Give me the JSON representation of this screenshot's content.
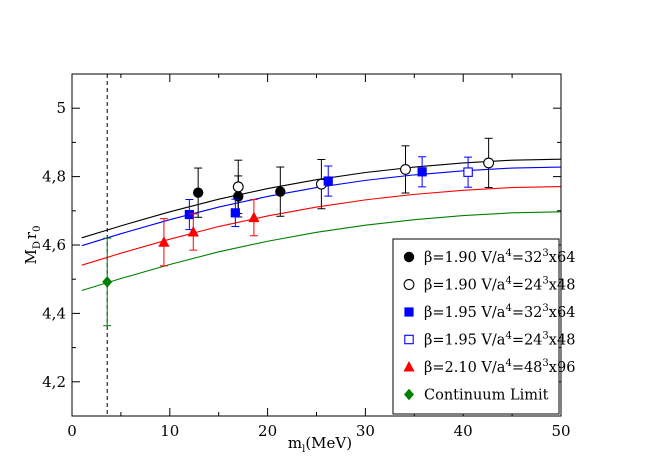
{
  "chart_data": {
    "type": "scatter",
    "title": "",
    "xlabel": {
      "base": "m",
      "sub": "l",
      "rest": "(MeV)"
    },
    "ylabel": {
      "base": "M",
      "sub1": "D",
      "mid": "r",
      "sub2": "0"
    },
    "xlim": [
      0,
      50
    ],
    "ylim": [
      4.1,
      5.1
    ],
    "xticks": [
      0,
      10,
      20,
      30,
      40,
      50
    ],
    "xtick_labels": [
      "0",
      "10",
      "20",
      "30",
      "40",
      "50"
    ],
    "yticks": [
      4.2,
      4.4,
      4.6,
      4.8,
      5.0
    ],
    "ytick_labels": [
      "4,2",
      "4,4",
      "4,6",
      "4,8",
      "5"
    ],
    "grid": false,
    "legend_position": "bottom-right",
    "vline_x": 3.6,
    "series": [
      {
        "name": "β=1.90 V/a⁴=32³x64",
        "label_parts": [
          "β=1.90 V/a",
          "4",
          "=32",
          "3",
          "x64"
        ],
        "marker": "circle-filled",
        "color": "#000000",
        "points": [
          {
            "x": 12.9,
            "y": 4.753,
            "err": 0.072
          },
          {
            "x": 17.0,
            "y": 4.742,
            "err": 0.06
          },
          {
            "x": 21.3,
            "y": 4.756,
            "err": 0.072
          }
        ]
      },
      {
        "name": "β=1.90 V/a⁴=24³x48",
        "label_parts": [
          "β=1.90 V/a",
          "4",
          "=24",
          "3",
          "x48"
        ],
        "marker": "circle-open",
        "color": "#000000",
        "points": [
          {
            "x": 17.0,
            "y": 4.77,
            "err": 0.078
          },
          {
            "x": 25.5,
            "y": 4.778,
            "err": 0.072
          },
          {
            "x": 34.1,
            "y": 4.821,
            "err": 0.069
          },
          {
            "x": 42.6,
            "y": 4.84,
            "err": 0.072
          }
        ]
      },
      {
        "name": "β=1.95 V/a⁴=32³x64",
        "label_parts": [
          "β=1.95 V/a",
          "4",
          "=32",
          "3",
          "x64"
        ],
        "marker": "square-filled",
        "color": "#0000ff",
        "points": [
          {
            "x": 12.0,
            "y": 4.689,
            "err": 0.044
          },
          {
            "x": 16.7,
            "y": 4.694,
            "err": 0.04
          },
          {
            "x": 26.2,
            "y": 4.787,
            "err": 0.044
          },
          {
            "x": 35.8,
            "y": 4.814,
            "err": 0.044
          }
        ]
      },
      {
        "name": "β=1.95 V/a⁴=24³x48",
        "label_parts": [
          "β=1.95 V/a",
          "4",
          "=24",
          "3",
          "x48"
        ],
        "marker": "square-open",
        "color": "#0000ff",
        "points": [
          {
            "x": 40.5,
            "y": 4.813,
            "err": 0.044
          }
        ]
      },
      {
        "name": "β=2.10 V/a⁴=48³x96",
        "label_parts": [
          "β=2.10 V/a",
          "4",
          "=48",
          "3",
          "x96"
        ],
        "marker": "triangle-filled",
        "color": "#ff0000",
        "points": [
          {
            "x": 9.4,
            "y": 4.608,
            "err": 0.069
          },
          {
            "x": 12.4,
            "y": 4.638,
            "err": 0.053
          },
          {
            "x": 18.6,
            "y": 4.68,
            "err": 0.053
          }
        ]
      },
      {
        "name": "Continuum Limit",
        "label_parts": [
          "Continuum Limit"
        ],
        "marker": "diamond-filled",
        "color": "#008000",
        "points": [
          {
            "x": 3.6,
            "y": 4.492,
            "err": 0.128
          }
        ]
      }
    ],
    "fit_curves": [
      {
        "color": "#000000",
        "x": [
          1,
          5,
          10,
          15,
          20,
          25,
          30,
          35,
          40,
          45,
          50
        ],
        "y": [
          4.621,
          4.656,
          4.697,
          4.734,
          4.765,
          4.791,
          4.812,
          4.828,
          4.84,
          4.848,
          4.851
        ]
      },
      {
        "color": "#0000ff",
        "x": [
          1,
          5,
          10,
          15,
          20,
          25,
          30,
          35,
          40,
          45,
          50
        ],
        "y": [
          4.598,
          4.633,
          4.674,
          4.711,
          4.742,
          4.768,
          4.789,
          4.805,
          4.817,
          4.825,
          4.828
        ]
      },
      {
        "color": "#ff0000",
        "x": [
          1,
          5,
          10,
          15,
          20,
          25,
          30,
          35,
          40,
          45,
          50
        ],
        "y": [
          4.541,
          4.576,
          4.617,
          4.654,
          4.685,
          4.711,
          4.732,
          4.748,
          4.76,
          4.768,
          4.771
        ]
      },
      {
        "color": "#008000",
        "x": [
          1,
          5,
          10,
          15,
          20,
          25,
          30,
          35,
          40,
          45,
          50
        ],
        "y": [
          4.467,
          4.502,
          4.543,
          4.58,
          4.611,
          4.637,
          4.658,
          4.674,
          4.686,
          4.694,
          4.697
        ]
      }
    ]
  }
}
